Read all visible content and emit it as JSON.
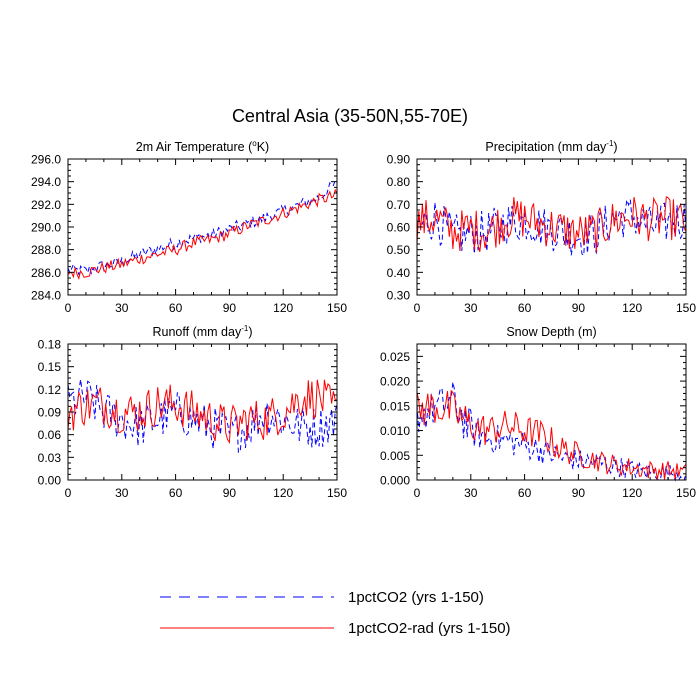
{
  "title": "Central Asia (35-50N,55-70E)",
  "legend": [
    {
      "label": "1pctCO2 (yrs 1-150)",
      "color": "#0000ff",
      "dash": true
    },
    {
      "label": "1pctCO2-rad (yrs 1-150)",
      "color": "#ff0000",
      "dash": false
    }
  ],
  "chart_data": [
    {
      "type": "line",
      "title": "2m Air Temperature (°K)",
      "title_main": "2m Air Temperature (",
      "title_unit": "o",
      "title_tail": "K)",
      "xlim": [
        0,
        150
      ],
      "ylim": [
        284,
        296
      ],
      "x_ticks": [
        0,
        30,
        60,
        90,
        120,
        150
      ],
      "y_ticks": [
        284,
        286,
        288,
        290,
        292,
        294,
        296
      ],
      "y_tick_labels": [
        "284.0",
        "286.0",
        "288.0",
        "290.0",
        "292.0",
        "294.0",
        "296.0"
      ],
      "series": [
        {
          "name": "1pctCO2 (yrs 1-150)",
          "x": [
            0,
            10,
            20,
            30,
            40,
            50,
            60,
            70,
            80,
            90,
            100,
            110,
            120,
            130,
            140,
            150
          ],
          "y": [
            286.2,
            286.1,
            286.6,
            286.9,
            287.6,
            288.1,
            288.6,
            289.0,
            289.3,
            289.8,
            290.3,
            290.8,
            291.4,
            292.0,
            292.6,
            293.9
          ]
        },
        {
          "name": "1pctCO2-rad (yrs 1-150)",
          "x": [
            0,
            10,
            20,
            30,
            40,
            50,
            60,
            70,
            80,
            90,
            100,
            110,
            120,
            130,
            140,
            150
          ],
          "y": [
            286.0,
            286.0,
            286.4,
            286.7,
            287.2,
            287.6,
            288.0,
            288.6,
            288.9,
            289.4,
            290.1,
            290.6,
            291.2,
            291.8,
            292.4,
            292.8
          ]
        }
      ]
    },
    {
      "type": "line",
      "title": "Precipitation (mm day-1)",
      "title_main": "Precipitation (mm day",
      "title_unit": "-1",
      "title_tail": ")",
      "xlim": [
        0,
        150
      ],
      "ylim": [
        0.3,
        0.9
      ],
      "x_ticks": [
        0,
        30,
        60,
        90,
        120,
        150
      ],
      "y_ticks": [
        0.3,
        0.4,
        0.5,
        0.6,
        0.7,
        0.8,
        0.9
      ],
      "y_tick_labels": [
        "0.30",
        "0.40",
        "0.50",
        "0.60",
        "0.70",
        "0.80",
        "0.90"
      ],
      "series": [
        {
          "name": "1pctCO2 (yrs 1-150)",
          "x": [
            0,
            10,
            20,
            30,
            40,
            50,
            60,
            70,
            80,
            90,
            100,
            110,
            120,
            130,
            140,
            150
          ],
          "y": [
            0.6,
            0.64,
            0.56,
            0.57,
            0.58,
            0.62,
            0.63,
            0.6,
            0.58,
            0.56,
            0.57,
            0.64,
            0.65,
            0.6,
            0.62,
            0.64
          ]
        },
        {
          "name": "1pctCO2-rad (yrs 1-150)",
          "x": [
            0,
            10,
            20,
            30,
            40,
            50,
            60,
            70,
            80,
            90,
            100,
            110,
            120,
            130,
            140,
            150
          ],
          "y": [
            0.62,
            0.64,
            0.58,
            0.59,
            0.58,
            0.64,
            0.64,
            0.61,
            0.59,
            0.57,
            0.58,
            0.63,
            0.65,
            0.63,
            0.64,
            0.62
          ]
        }
      ]
    },
    {
      "type": "line",
      "title": "Runoff (mm day-1)",
      "title_main": "Runoff (mm day",
      "title_unit": "-1",
      "title_tail": ")",
      "xlim": [
        0,
        150
      ],
      "ylim": [
        0,
        0.18
      ],
      "x_ticks": [
        0,
        30,
        60,
        90,
        120,
        150
      ],
      "y_ticks": [
        0,
        0.03,
        0.06,
        0.09,
        0.12,
        0.15,
        0.18
      ],
      "y_tick_labels": [
        "0.00",
        "0.03",
        "0.06",
        "0.09",
        "0.12",
        "0.15",
        "0.18"
      ],
      "series": [
        {
          "name": "1pctCO2 (yrs 1-150)",
          "x": [
            0,
            10,
            20,
            30,
            40,
            50,
            60,
            70,
            80,
            90,
            100,
            110,
            120,
            130,
            140,
            150
          ],
          "y": [
            0.1,
            0.11,
            0.09,
            0.08,
            0.07,
            0.08,
            0.09,
            0.08,
            0.07,
            0.06,
            0.07,
            0.09,
            0.08,
            0.07,
            0.07,
            0.08
          ]
        },
        {
          "name": "1pctCO2-rad (yrs 1-150)",
          "x": [
            0,
            10,
            20,
            30,
            40,
            50,
            60,
            70,
            80,
            90,
            100,
            110,
            120,
            130,
            140,
            150
          ],
          "y": [
            0.09,
            0.1,
            0.1,
            0.09,
            0.09,
            0.1,
            0.1,
            0.09,
            0.08,
            0.07,
            0.08,
            0.08,
            0.09,
            0.11,
            0.11,
            0.09
          ]
        }
      ]
    },
    {
      "type": "line",
      "title": "Snow Depth (m)",
      "title_main": "Snow Depth (m)",
      "title_unit": "",
      "title_tail": "",
      "xlim": [
        0,
        150
      ],
      "ylim": [
        0,
        0.0275
      ],
      "x_ticks": [
        0,
        30,
        60,
        90,
        120,
        150
      ],
      "y_ticks": [
        0,
        0.005,
        0.01,
        0.015,
        0.02,
        0.025
      ],
      "y_tick_labels": [
        "0.000",
        "0.005",
        "0.010",
        "0.015",
        "0.020",
        "0.025"
      ],
      "series": [
        {
          "name": "1pctCO2 (yrs 1-150)",
          "x": [
            0,
            10,
            20,
            30,
            40,
            50,
            60,
            70,
            80,
            90,
            100,
            110,
            120,
            130,
            140,
            150
          ],
          "y": [
            0.013,
            0.0145,
            0.016,
            0.01,
            0.0085,
            0.008,
            0.007,
            0.006,
            0.0045,
            0.004,
            0.0035,
            0.003,
            0.002,
            0.0015,
            0.0015,
            0.001
          ]
        },
        {
          "name": "1pctCO2-rad (yrs 1-150)",
          "x": [
            0,
            10,
            20,
            30,
            40,
            50,
            60,
            70,
            80,
            90,
            100,
            110,
            120,
            130,
            140,
            150
          ],
          "y": [
            0.014,
            0.015,
            0.014,
            0.011,
            0.01,
            0.011,
            0.01,
            0.009,
            0.0065,
            0.005,
            0.004,
            0.003,
            0.0025,
            0.002,
            0.002,
            0.0015
          ]
        }
      ]
    }
  ]
}
